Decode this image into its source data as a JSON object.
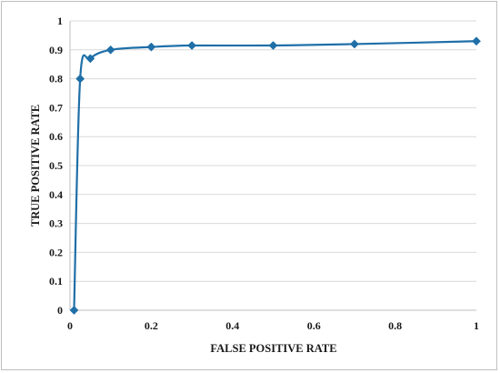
{
  "chart_data": {
    "type": "line",
    "title": "",
    "xlabel": "FALSE POSITIVE RATE",
    "ylabel": "TRUE POSITIVE RATE",
    "xlim": [
      0,
      1
    ],
    "ylim": [
      0,
      1
    ],
    "x_ticks": [
      "0",
      "0.2",
      "0.4",
      "0.6",
      "0.8",
      "1"
    ],
    "y_ticks": [
      "0",
      "0.1",
      "0.2",
      "0.3",
      "0.4",
      "0.5",
      "0.6",
      "0.7",
      "0.8",
      "0.9",
      "1"
    ],
    "grid": true,
    "legend": "none",
    "series": [
      {
        "color": "#1f6fa8",
        "marker": "diamond",
        "smooth": true,
        "points": [
          {
            "x": 0.01,
            "y": 0.0
          },
          {
            "x": 0.025,
            "y": 0.8
          },
          {
            "x": 0.05,
            "y": 0.87
          },
          {
            "x": 0.1,
            "y": 0.9
          },
          {
            "x": 0.2,
            "y": 0.91
          },
          {
            "x": 0.3,
            "y": 0.915
          },
          {
            "x": 0.5,
            "y": 0.915
          },
          {
            "x": 0.7,
            "y": 0.92
          },
          {
            "x": 1.0,
            "y": 0.93
          }
        ]
      }
    ]
  }
}
